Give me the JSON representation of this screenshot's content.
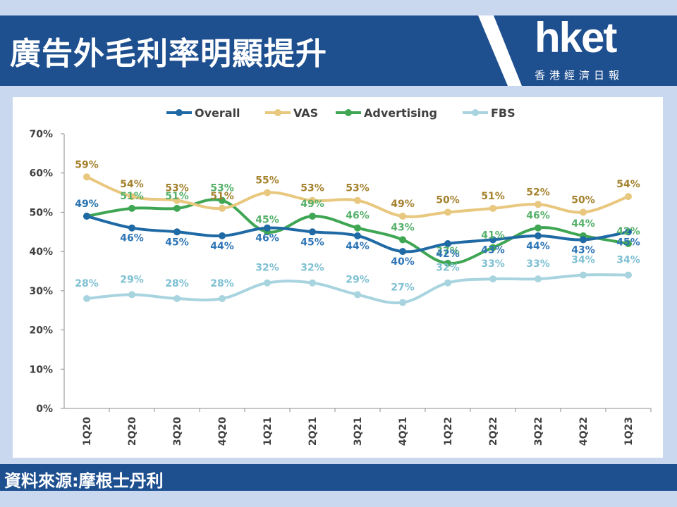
{
  "header": {
    "title": "廣告外毛利率明顯提升"
  },
  "logo": {
    "main": "hket",
    "sub": "香港經濟日報"
  },
  "footer": {
    "source": "資料來源:摩根士丹利"
  },
  "chart_data": {
    "type": "line",
    "categories": [
      "1Q20",
      "2Q20",
      "3Q20",
      "4Q20",
      "1Q21",
      "2Q21",
      "3Q21",
      "4Q21",
      "1Q22",
      "2Q22",
      "3Q22",
      "4Q22",
      "1Q23"
    ],
    "ylim": [
      0,
      70
    ],
    "yticks": [
      0,
      10,
      20,
      30,
      40,
      50,
      60,
      70
    ],
    "ytick_labels": [
      "0%",
      "10%",
      "20%",
      "30%",
      "40%",
      "50%",
      "60%",
      "70%"
    ],
    "grid": false,
    "legend": "top",
    "series": [
      {
        "name": "Overall",
        "color": "#1f6aa5",
        "label_color": "#2e75b6",
        "values": [
          49,
          46,
          45,
          44,
          46,
          45,
          44,
          40,
          42,
          43,
          44,
          43,
          45
        ],
        "labels": [
          "49%",
          "46%",
          "45%",
          "44%",
          "46%",
          "45%",
          "44%",
          "40%",
          "42%",
          "43%",
          "44%",
          "43%",
          "45%"
        ]
      },
      {
        "name": "VAS",
        "color": "#e8c77e",
        "label_color": "#a4822e",
        "values": [
          59,
          54,
          53,
          51,
          55,
          53,
          53,
          49,
          50,
          51,
          52,
          50,
          54
        ],
        "labels": [
          "59%",
          "54%",
          "53%",
          "51%",
          "55%",
          "53%",
          "53%",
          "49%",
          "50%",
          "51%",
          "52%",
          "50%",
          "54%"
        ]
      },
      {
        "name": "Advertising",
        "color": "#3fa654",
        "label_color": "#55b06a",
        "values": [
          49,
          51,
          51,
          53,
          45,
          49,
          46,
          43,
          37,
          41,
          46,
          44,
          42
        ],
        "labels": [
          "49%",
          "51%",
          "51%",
          "53%",
          "45%",
          "49%",
          "46%",
          "43%",
          "37%",
          "41%",
          "46%",
          "44%",
          "42%"
        ]
      },
      {
        "name": "FBS",
        "color": "#a8d4df",
        "label_color": "#7ec0d3",
        "values": [
          28,
          29,
          28,
          28,
          32,
          32,
          29,
          27,
          32,
          33,
          33,
          34,
          34
        ],
        "labels": [
          "28%",
          "29%",
          "28%",
          "28%",
          "32%",
          "32%",
          "29%",
          "27%",
          "32%",
          "33%",
          "33%",
          "34%",
          "34%"
        ]
      }
    ]
  }
}
